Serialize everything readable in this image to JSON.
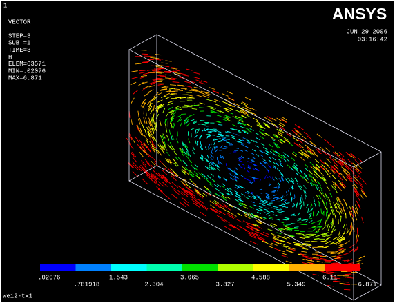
{
  "window_number": "1",
  "info": {
    "plot": "VECTOR",
    "lines": [
      "STEP=3",
      "SUB =1",
      "TIME=3",
      "H",
      "ELEM=63571",
      "MIN=.02076",
      "MAX=6.871"
    ]
  },
  "logo": "ANSYS",
  "date": "JUN 29 2006",
  "time": "03:16:42",
  "legend": {
    "labels": [
      ".02076",
      ".781918",
      "1.543",
      "2.304",
      "3.065",
      "3.827",
      "4.588",
      "5.349",
      "6.11",
      "6.871"
    ]
  },
  "footer": "wei2-tx1"
}
